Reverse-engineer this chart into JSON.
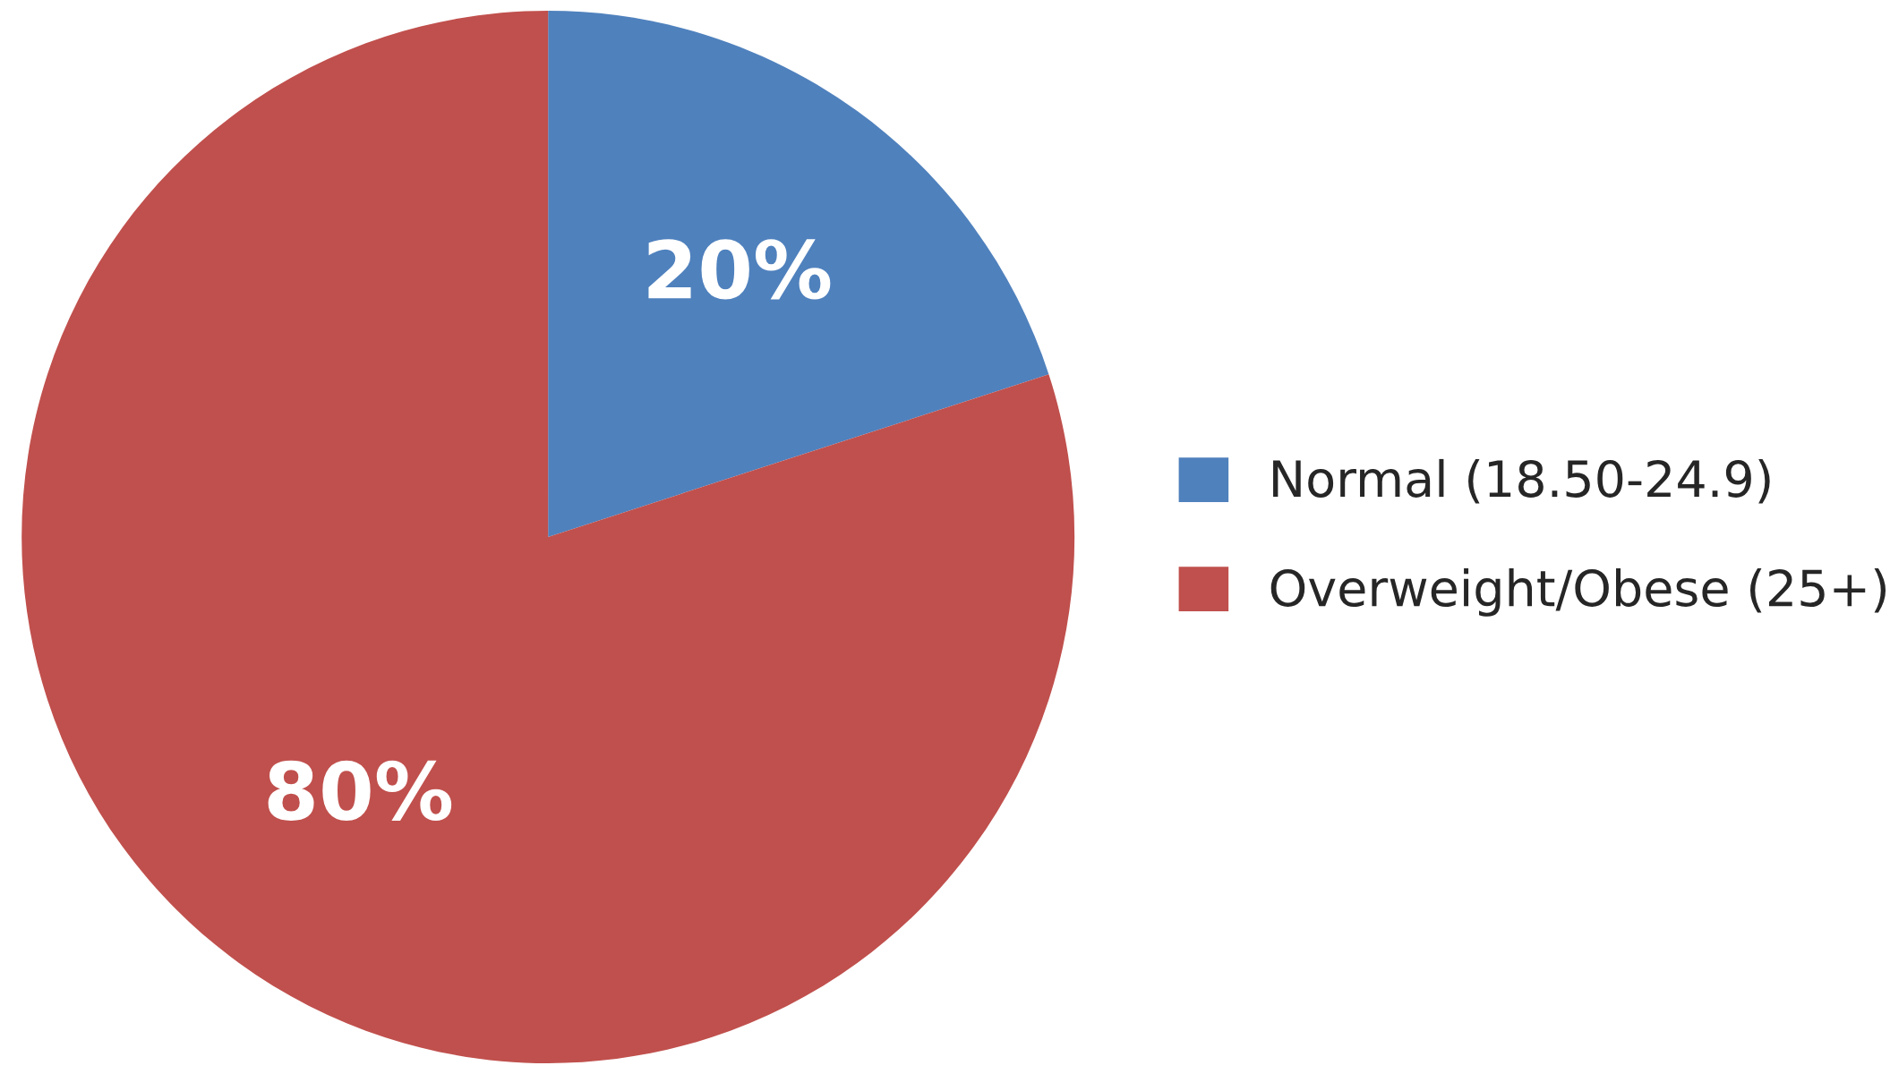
{
  "chart_data": {
    "type": "pie",
    "categories": [
      "Normal (18.50-24.9)",
      "Overweight/Obese (25+)"
    ],
    "values": [
      20,
      80
    ],
    "colors": [
      "#4f81bd",
      "#c0504d"
    ],
    "value_labels": [
      "20%",
      "80%"
    ],
    "legend": "right"
  }
}
